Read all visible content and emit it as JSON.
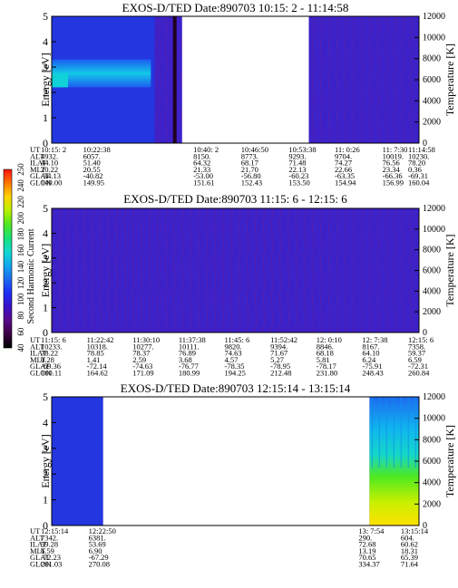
{
  "colorbar": {
    "label": "Second Harmonic Current",
    "ticks": [
      "40",
      "60",
      "80",
      "100",
      "120",
      "140",
      "160",
      "180",
      "200",
      "220",
      "240",
      "250"
    ],
    "colors": [
      "#000000",
      "#3a0044",
      "#5a0a88",
      "#3a10c8",
      "#1e2ef4",
      "#1d6af0",
      "#10a8ee",
      "#12d8d0",
      "#18e27a",
      "#4ee820",
      "#b8f000",
      "#ffd400",
      "#ff7a00",
      "#ff1010"
    ]
  },
  "chart_data": [
    {
      "type": "heatmap",
      "title": "EXOS-D/TED   Date:890703  10:15: 2 - 11:14:58",
      "ylabel": "Energy [eV]",
      "y2label": "Temperature [K]",
      "ylim": [
        0,
        5
      ],
      "y2lim": [
        0,
        12000
      ],
      "yticks": [
        "0",
        "1",
        "2",
        "3",
        "4",
        "5"
      ],
      "y2ticks": [
        "0",
        "2000",
        "4000",
        "6000",
        "8000",
        "10000",
        "12000"
      ],
      "data_gaps": [
        [
          0.355,
          0.7
        ]
      ],
      "hot_band": {
        "x": [
          0,
          0.27
        ],
        "energy": [
          2.2,
          3.3
        ],
        "level": "cyan"
      },
      "ephemeris_labels": [
        "UT",
        "ALT",
        "ILAT",
        "MLT",
        "GLAT",
        "GLON"
      ],
      "ephemeris": [
        {
          "UT": "10:15: 2",
          "ALT": "4932.",
          "ILAT": "44.10",
          "MLT": "20.22",
          "GLAT": "-34.13",
          "GLON": "149.00"
        },
        {
          "UT": "10:22:38",
          "ALT": "6057.",
          "ILAT": "51.40",
          "MLT": "20.55",
          "GLAT": "-40.82",
          "GLON": "149.95"
        },
        {
          "UT": "10:40: 2",
          "ALT": "8150.",
          "ILAT": "64.32",
          "MLT": "21.33",
          "GLAT": "-53.00",
          "GLON": "151.61"
        },
        {
          "UT": "10:46:50",
          "ALT": "8773.",
          "ILAT": "68.17",
          "MLT": "21.70",
          "GLAT": "-56.80",
          "GLON": "152.43"
        },
        {
          "UT": "10:53:38",
          "ALT": "9293.",
          "ILAT": "71.48",
          "MLT": "22.13",
          "GLAT": "-60.23",
          "GLON": "153.50"
        },
        {
          "UT": "11: 0:26",
          "ALT": "9704.",
          "ILAT": "74.27",
          "MLT": "22.66",
          "GLAT": "-63.35",
          "GLON": "154.94"
        },
        {
          "UT": "11: 7:30",
          "ALT": "10019.",
          "ILAT": "76.56",
          "MLT": "23.34",
          "GLAT": "-66.36",
          "GLON": "156.99"
        },
        {
          "UT": "11:14:58",
          "ALT": "10230.",
          "ILAT": "78.20",
          "MLT": "0.36",
          "GLAT": "-69.31",
          "GLON": "160.04"
        }
      ]
    },
    {
      "type": "heatmap",
      "title": "EXOS-D/TED   Date:890703  11:15: 6 - 12:15: 6",
      "ylabel": "Energy [eV]",
      "y2label": "Temperature [K]",
      "ylim": [
        0,
        5
      ],
      "y2lim": [
        0,
        12000
      ],
      "yticks": [
        "0",
        "1",
        "2",
        "3",
        "4",
        "5"
      ],
      "y2ticks": [
        "0",
        "2000",
        "4000",
        "6000",
        "8000",
        "10000",
        "12000"
      ],
      "data_gaps": [],
      "ephemeris_labels": [
        "UT",
        "ALT",
        "ILAT",
        "MLT",
        "GLAT",
        "GLON"
      ],
      "ephemeris": [
        {
          "UT": "11:15: 6",
          "ALT": "10233.",
          "ILAT": "78.22",
          "MLT": "0.28",
          "GLAT": "-69.36",
          "GLON": "160.11"
        },
        {
          "UT": "11:22:42",
          "ALT": "10318.",
          "ILAT": "78.85",
          "MLT": "1.41",
          "GLAT": "-72.14",
          "GLON": "164.62"
        },
        {
          "UT": "11:30:10",
          "ALT": "10277.",
          "ILAT": "78.37",
          "MLT": "2.59",
          "GLAT": "-74.63",
          "GLON": "171.09"
        },
        {
          "UT": "11:37:38",
          "ALT": "10111.",
          "ILAT": "76.89",
          "MLT": "3.68",
          "GLAT": "-76.77",
          "GLON": "180.99"
        },
        {
          "UT": "11:45: 6",
          "ALT": "9820.",
          "ILAT": "74.63",
          "MLT": "4.57",
          "GLAT": "-78.35",
          "GLON": "194.25"
        },
        {
          "UT": "11:52:42",
          "ALT": "9394.",
          "ILAT": "71.67",
          "MLT": "5.27",
          "GLAT": "-78.95",
          "GLON": "212.48"
        },
        {
          "UT": "12: 0:10",
          "ALT": "8846.",
          "ILAT": "68.18",
          "MLT": "5.81",
          "GLAT": "-78.17",
          "GLON": "231.80"
        },
        {
          "UT": "12: 7:38",
          "ALT": "8167.",
          "ILAT": "64.10",
          "MLT": "6.24",
          "GLAT": "-75.91",
          "GLON": "248.43"
        },
        {
          "UT": "12:15: 6",
          "ALT": "7358.",
          "ILAT": "59.37",
          "MLT": "6.59",
          "GLAT": "-72.31",
          "GLON": "260.84"
        }
      ]
    },
    {
      "type": "heatmap",
      "title": "EXOS-D/TED   Date:890703  12:15:14 - 13:15:14",
      "ylabel": "Energy [eV]",
      "y2label": "Temperature [K]",
      "ylim": [
        0,
        5
      ],
      "y2lim": [
        0,
        12000
      ],
      "yticks": [
        "0",
        "1",
        "2",
        "3",
        "4",
        "5"
      ],
      "y2ticks": [
        "0",
        "2000",
        "4000",
        "6000",
        "8000",
        "10000",
        "12000"
      ],
      "data_gaps": [
        [
          0.14,
          0.865
        ]
      ],
      "ephemeris_labels": [
        "UT",
        "ALT",
        "ILAT",
        "MLT",
        "GLAT",
        "GLON"
      ],
      "ephemeris": [
        {
          "UT": "12:15:14",
          "ALT": "7342.",
          "ILAT": "59.28",
          "MLT": "6.59",
          "GLAT": "-72.23",
          "GLON": "261.03"
        },
        {
          "UT": "12:22:50",
          "ALT": "6381.",
          "ILAT": "53.69",
          "MLT": "6.90",
          "GLAT": "-67.29",
          "GLON": "270.08"
        },
        {
          "UT": "13: 7:54",
          "ALT": "290.",
          "ILAT": "72.68",
          "MLT": "13.19",
          "GLAT": "70.65",
          "GLON": "334.37"
        },
        {
          "UT": "13:15:14",
          "ALT": "604.",
          "ILAT": "60.62",
          "MLT": "18.31",
          "GLAT": "65.39",
          "GLON": "71.64"
        }
      ]
    }
  ]
}
